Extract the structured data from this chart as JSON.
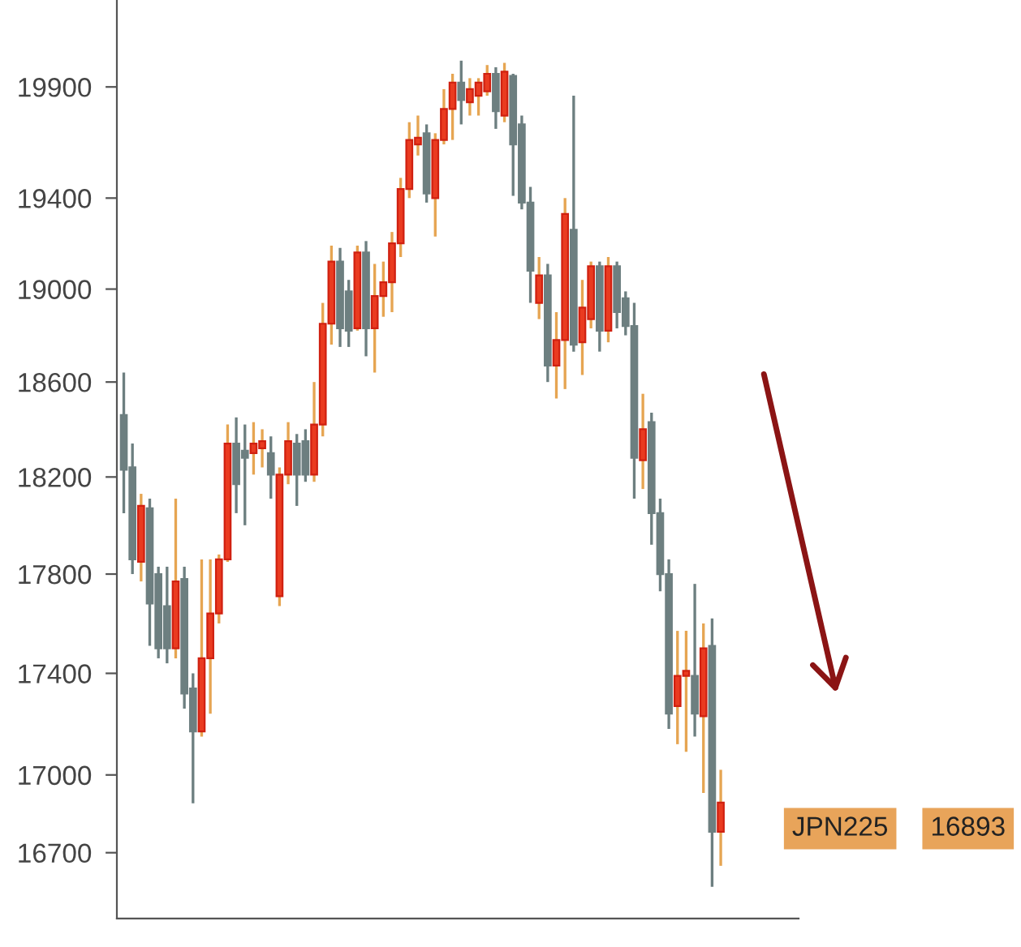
{
  "chart_data": {
    "type": "candlestick",
    "log": "y",
    "categories": [
      null,
      null,
      null,
      null,
      null,
      null,
      null,
      null,
      null,
      null,
      null,
      null,
      null,
      null,
      null,
      null,
      null,
      null,
      null,
      null,
      null,
      null,
      null,
      null,
      null,
      null,
      null,
      null,
      null,
      null,
      null,
      null,
      null,
      null,
      null,
      null,
      null,
      null,
      null,
      null,
      null,
      null,
      null,
      null,
      null,
      null,
      null,
      null,
      null,
      null,
      null,
      null,
      null,
      null,
      null,
      null,
      null,
      null,
      null,
      null,
      null,
      null,
      null,
      null,
      null,
      null,
      null,
      null,
      null,
      null
    ],
    "ohlc": [
      [
        18460,
        18640,
        18050,
        18230
      ],
      [
        18240,
        18340,
        17800,
        17860
      ],
      [
        17850,
        18130,
        17770,
        18080
      ],
      [
        18070,
        18110,
        17510,
        17680
      ],
      [
        17800,
        17830,
        17460,
        17500
      ],
      [
        17670,
        17830,
        17440,
        17500
      ],
      [
        17500,
        18110,
        17460,
        17770
      ],
      [
        17780,
        17830,
        17260,
        17320
      ],
      [
        17340,
        17400,
        16890,
        17170
      ],
      [
        17170,
        17860,
        17150,
        17460
      ],
      [
        17460,
        17860,
        17240,
        17640
      ],
      [
        17640,
        17880,
        17600,
        17860
      ],
      [
        17860,
        18420,
        17850,
        18340
      ],
      [
        18340,
        18450,
        18050,
        18170
      ],
      [
        18310,
        18420,
        18000,
        18280
      ],
      [
        18300,
        18430,
        18210,
        18340
      ],
      [
        18320,
        18400,
        18240,
        18350
      ],
      [
        18300,
        18370,
        18110,
        18210
      ],
      [
        17710,
        18240,
        17670,
        18210
      ],
      [
        18210,
        18430,
        18170,
        18350
      ],
      [
        18340,
        18380,
        18080,
        18210
      ],
      [
        18350,
        18400,
        18180,
        18210
      ],
      [
        18210,
        18600,
        18180,
        18420
      ],
      [
        18420,
        18940,
        18370,
        18850
      ],
      [
        18850,
        19190,
        18760,
        19120
      ],
      [
        19120,
        19180,
        18750,
        18830
      ],
      [
        18990,
        19040,
        18750,
        18820
      ],
      [
        18830,
        19190,
        18820,
        19160
      ],
      [
        19160,
        19210,
        18710,
        18830
      ],
      [
        18830,
        19110,
        18640,
        18970
      ],
      [
        18970,
        19120,
        18880,
        19030
      ],
      [
        19030,
        19250,
        18900,
        19200
      ],
      [
        19200,
        19490,
        19140,
        19440
      ],
      [
        19440,
        19740,
        19400,
        19660
      ],
      [
        19640,
        19770,
        19590,
        19670
      ],
      [
        19690,
        19730,
        19380,
        19420
      ],
      [
        19400,
        19690,
        19230,
        19660
      ],
      [
        19660,
        19890,
        19640,
        19800
      ],
      [
        19800,
        19960,
        19660,
        19920
      ],
      [
        19920,
        20020,
        19730,
        19840
      ],
      [
        19830,
        19940,
        19770,
        19890
      ],
      [
        19860,
        19940,
        19770,
        19920
      ],
      [
        19880,
        20000,
        19860,
        19960
      ],
      [
        19960,
        19990,
        19710,
        19790
      ],
      [
        19770,
        20010,
        19740,
        19970
      ],
      [
        19950,
        19960,
        19410,
        19640
      ],
      [
        19730,
        19770,
        19350,
        19380
      ],
      [
        19380,
        19450,
        18940,
        19080
      ],
      [
        18940,
        19140,
        18870,
        19060
      ],
      [
        19060,
        19110,
        18600,
        18670
      ],
      [
        18670,
        18900,
        18530,
        18780
      ],
      [
        18780,
        19400,
        18570,
        19330
      ],
      [
        19260,
        19860,
        18730,
        18760
      ],
      [
        18770,
        19040,
        18630,
        18920
      ],
      [
        18870,
        19120,
        18830,
        19100
      ],
      [
        19100,
        19120,
        18730,
        18820
      ],
      [
        18820,
        19140,
        18770,
        19100
      ],
      [
        19100,
        19120,
        18830,
        18900
      ],
      [
        18960,
        18990,
        18800,
        18840
      ],
      [
        18840,
        18940,
        18110,
        18280
      ],
      [
        18270,
        18550,
        18150,
        18400
      ],
      [
        18430,
        18470,
        17920,
        18050
      ],
      [
        18050,
        18110,
        17730,
        17800
      ],
      [
        17800,
        17860,
        17180,
        17240
      ],
      [
        17270,
        17570,
        17120,
        17390
      ],
      [
        17390,
        17570,
        17090,
        17410
      ],
      [
        17390,
        17760,
        17150,
        17240
      ],
      [
        17230,
        17600,
        16930,
        17500
      ],
      [
        17510,
        17620,
        16570,
        16780
      ],
      [
        16780,
        17020,
        16650,
        16893
      ]
    ],
    "ylim": [
      16450,
      20300
    ],
    "yticks": [
      16700,
      17000,
      17400,
      17800,
      18200,
      18600,
      19000,
      19400,
      19900
    ],
    "annotations": [
      "JPN225",
      "16893"
    ],
    "grid": false,
    "legend": false
  }
}
